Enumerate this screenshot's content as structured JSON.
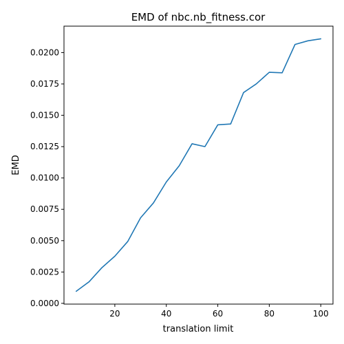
{
  "chart_data": {
    "type": "line",
    "title": "EMD of nbc.nb_fitness.cor",
    "xlabel": "translation limit",
    "ylabel": "EMD",
    "xlim": [
      0.25,
      104.75
    ],
    "ylim": [
      -6e-05,
      0.02211
    ],
    "xticks": [
      20,
      40,
      60,
      80,
      100
    ],
    "xtick_labels": [
      "20",
      "40",
      "60",
      "80",
      "100"
    ],
    "yticks": [
      0.0,
      0.0025,
      0.005,
      0.0075,
      0.01,
      0.0125,
      0.015,
      0.0175,
      0.02
    ],
    "ytick_labels": [
      "0.0000",
      "0.0025",
      "0.0050",
      "0.0075",
      "0.0100",
      "0.0125",
      "0.0150",
      "0.0175",
      "0.0200"
    ],
    "grid": false,
    "series": [
      {
        "color": "#1f77b4",
        "x": [
          5,
          10,
          15,
          20,
          25,
          30,
          35,
          40,
          45,
          50,
          55,
          60,
          65,
          70,
          75,
          80,
          85,
          90,
          95,
          100
        ],
        "y": [
          0.00096,
          0.00172,
          0.00285,
          0.00376,
          0.00493,
          0.00682,
          0.00801,
          0.00968,
          0.01097,
          0.01273,
          0.0125,
          0.01424,
          0.01431,
          0.01681,
          0.01751,
          0.01843,
          0.01839,
          0.02065,
          0.02094,
          0.0211
        ]
      }
    ]
  }
}
